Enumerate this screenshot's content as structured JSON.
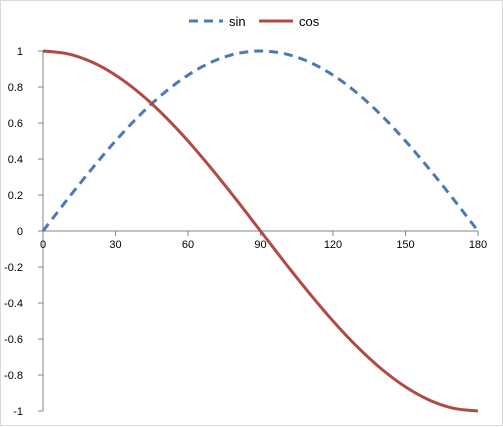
{
  "chart_data": {
    "type": "line",
    "title": "",
    "xlabel": "",
    "ylabel": "",
    "xlim": [
      0,
      180
    ],
    "ylim": [
      -1,
      1
    ],
    "x_ticks": [
      0,
      30,
      60,
      90,
      120,
      150,
      180
    ],
    "y_ticks": [
      -1,
      -0.8,
      -0.6,
      -0.4,
      -0.2,
      0,
      0.2,
      0.4,
      0.6,
      0.8,
      1
    ],
    "x_tick_labels": [
      "0",
      "30",
      "60",
      "90",
      "120",
      "150",
      "180"
    ],
    "y_tick_labels": [
      "-1",
      "-0.8",
      "-0.6",
      "-0.4",
      "-0.2",
      "0",
      "0.2",
      "0.4",
      "0.6",
      "0.8",
      "1"
    ],
    "grid": false,
    "legend": {
      "position": "top-center"
    },
    "x": [
      0,
      10,
      20,
      30,
      40,
      50,
      60,
      70,
      80,
      90,
      100,
      110,
      120,
      130,
      140,
      150,
      160,
      170,
      180
    ],
    "series": [
      {
        "name": "sin",
        "color": "#4a7ab5",
        "dash": "dashed",
        "values": [
          0,
          0.174,
          0.342,
          0.5,
          0.643,
          0.766,
          0.866,
          0.94,
          0.985,
          1,
          0.985,
          0.94,
          0.866,
          0.766,
          0.643,
          0.5,
          0.342,
          0.174,
          0
        ]
      },
      {
        "name": "cos",
        "color": "#b04a45",
        "dash": "solid",
        "values": [
          1,
          0.985,
          0.94,
          0.866,
          0.766,
          0.643,
          0.5,
          0.342,
          0.174,
          0,
          -0.174,
          -0.342,
          -0.5,
          -0.643,
          -0.766,
          -0.866,
          -0.94,
          -0.985,
          -1
        ]
      }
    ]
  }
}
